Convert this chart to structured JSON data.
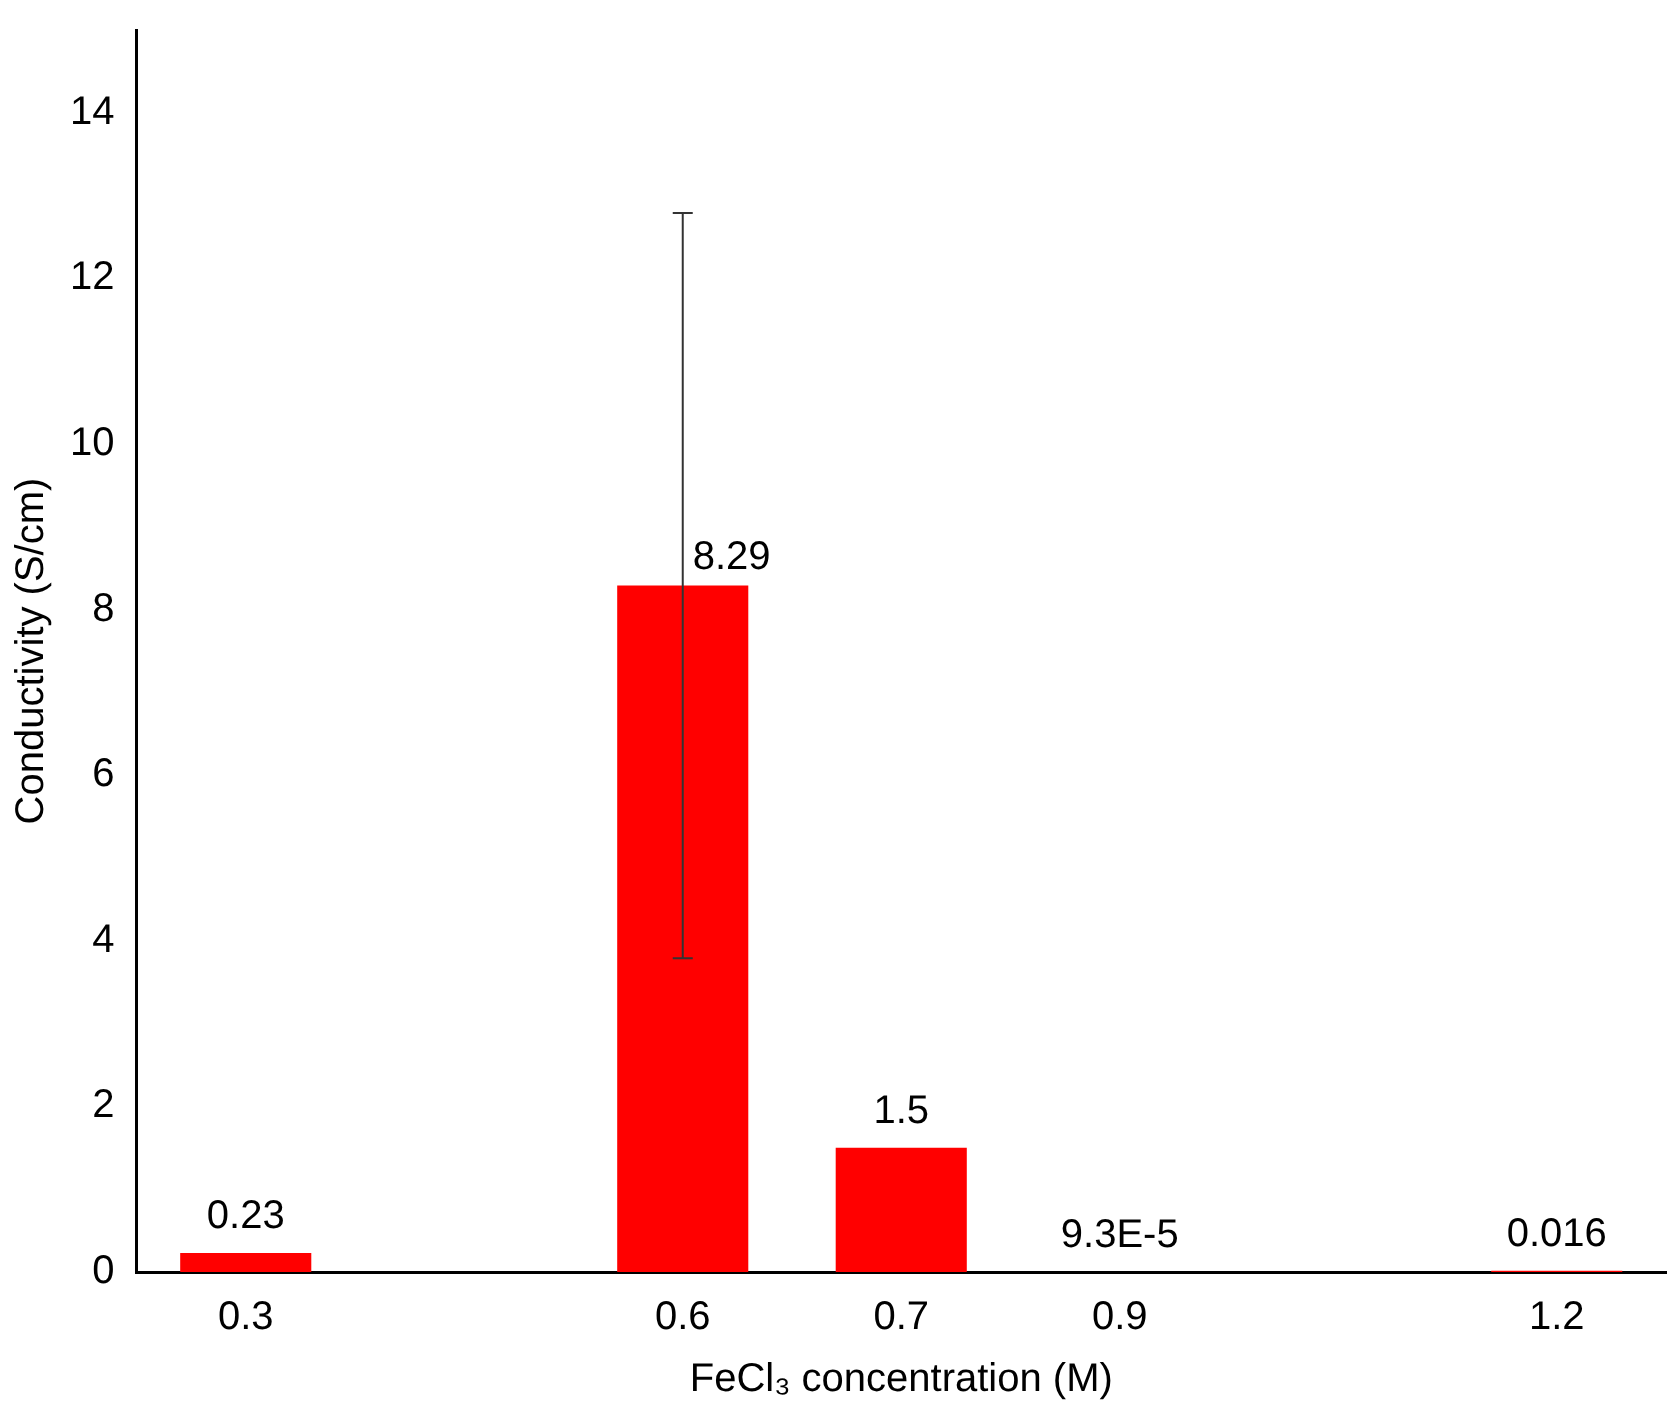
{
  "chart_data": {
    "type": "bar",
    "xlabel": "FeCl₃ concentration (M)",
    "ylabel": "Conductivity (S/cm)",
    "categories": [
      "0.3",
      null,
      "0.6",
      "0.7",
      "0.9",
      null,
      "1.2"
    ],
    "values": [
      0.23,
      null,
      8.29,
      1.5,
      9.3e-05,
      null,
      0.016
    ],
    "errors": [
      null,
      null,
      4.5,
      null,
      null,
      null,
      null
    ],
    "value_labels": [
      "0.23",
      null,
      "8.29",
      "1.5",
      "9.3E-5",
      null,
      "0.016"
    ],
    "color": "#ff0000",
    "ylim": [
      0,
      15
    ],
    "yticks": [
      0,
      2,
      4,
      6,
      8,
      10,
      12,
      14
    ],
    "grid": false,
    "legend": false
  }
}
